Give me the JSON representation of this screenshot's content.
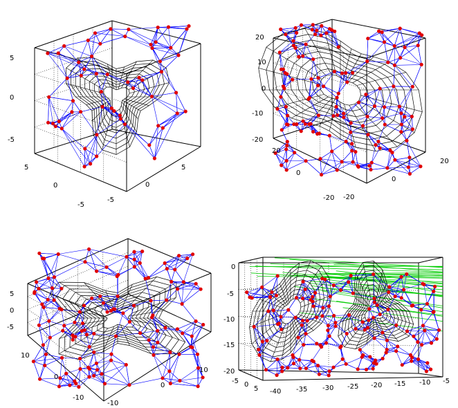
{
  "figure": {
    "description_visible": false,
    "colors": {
      "points": "#e00000",
      "edges": "#0000ff",
      "surface": "#000000",
      "rays": "#00cc00",
      "box": "#000000",
      "grid": "#000000"
    }
  },
  "chart_data": [
    {
      "type": "scatter",
      "projection": "3d",
      "panel": "top-left",
      "title": "",
      "grid": true,
      "z_ticks": [
        "5",
        "0",
        "-5"
      ],
      "x_ticks": [
        "5",
        "0",
        "-5"
      ],
      "y_ticks": [
        "-5",
        "0",
        "5"
      ],
      "layers": [
        "red vertices",
        "blue connecting edges",
        "black wireframe surface"
      ],
      "xlim": [
        -6,
        6
      ],
      "ylim": [
        -6,
        6
      ],
      "zlim": [
        -6,
        6
      ],
      "series": []
    },
    {
      "type": "scatter",
      "projection": "3d",
      "panel": "top-right",
      "title": "",
      "grid": true,
      "z_ticks": [
        "20",
        "10",
        "0",
        "-10",
        "-20"
      ],
      "x_ticks": [
        "20",
        "0",
        "-20"
      ],
      "y_ticks": [
        "-20",
        "0",
        "20"
      ],
      "layers": [
        "red vertices",
        "blue connecting edges",
        "black wireframe surface"
      ],
      "xlim": [
        -20,
        20
      ],
      "ylim": [
        -20,
        20
      ],
      "zlim": [
        -20,
        20
      ],
      "series": []
    },
    {
      "type": "scatter",
      "projection": "3d",
      "panel": "bottom-left",
      "title": "",
      "grid": true,
      "z_ticks": [
        "5",
        "0",
        "-5"
      ],
      "x_ticks": [
        "10",
        "0",
        "-10"
      ],
      "y_ticks": [
        "-10",
        "0",
        "10"
      ],
      "layers": [
        "red vertices",
        "blue connecting edges",
        "black wireframe surface"
      ],
      "xlim": [
        -12,
        12
      ],
      "ylim": [
        -12,
        12
      ],
      "zlim": [
        -6,
        6
      ],
      "series": []
    },
    {
      "type": "scatter",
      "projection": "3d",
      "panel": "bottom-right",
      "title": "",
      "grid": true,
      "z_ticks": [
        "0",
        "-5",
        "-10",
        "-15",
        "-20"
      ],
      "x_ticks": [
        "-5",
        "0",
        "5"
      ],
      "y_ticks": [
        "-40",
        "-35",
        "-30",
        "-25",
        "-20",
        "-15",
        "-10",
        "-5"
      ],
      "layers": [
        "red vertices",
        "blue connecting edges",
        "black wireframe surface",
        "green rays"
      ],
      "xlim": [
        -5,
        5
      ],
      "ylim": [
        -40,
        -5
      ],
      "zlim": [
        -20,
        0
      ],
      "series": []
    }
  ]
}
